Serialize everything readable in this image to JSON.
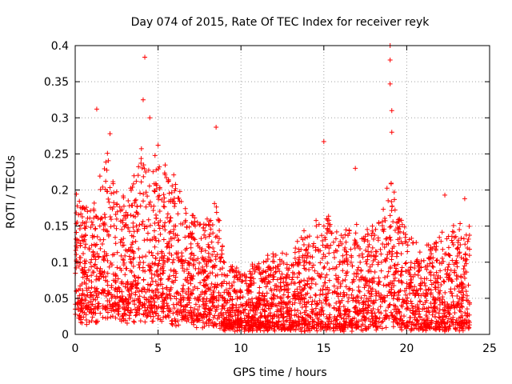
{
  "chart_data": {
    "type": "scatter",
    "title": "Day 074 of 2015, Rate Of TEC Index for receiver reyk",
    "xlabel": "GPS time / hours",
    "ylabel": "ROTI / TECUs",
    "xlim": [
      0,
      25
    ],
    "ylim": [
      0,
      0.4
    ],
    "x_ticks": [
      "0",
      "5",
      "10",
      "15",
      "20",
      "25"
    ],
    "y_ticks": [
      "0",
      "0.05",
      "0.1",
      "0.15",
      "0.2",
      "0.25",
      "0.3",
      "0.35",
      "0.4"
    ],
    "grid": true,
    "marker": "+",
    "color": "#ff0000",
    "x_range_of_data": [
      0,
      23.8
    ],
    "notable_points": [
      {
        "x": 1.3,
        "y": 0.312
      },
      {
        "x": 2.1,
        "y": 0.278
      },
      {
        "x": 4.2,
        "y": 0.384
      },
      {
        "x": 4.1,
        "y": 0.325
      },
      {
        "x": 4.5,
        "y": 0.3
      },
      {
        "x": 5.0,
        "y": 0.262
      },
      {
        "x": 8.5,
        "y": 0.287
      },
      {
        "x": 15.0,
        "y": 0.267
      },
      {
        "x": 16.9,
        "y": 0.23
      },
      {
        "x": 19.0,
        "y": 0.4
      },
      {
        "x": 19.0,
        "y": 0.38
      },
      {
        "x": 19.0,
        "y": 0.347
      },
      {
        "x": 19.1,
        "y": 0.31
      },
      {
        "x": 19.1,
        "y": 0.28
      },
      {
        "x": 22.3,
        "y": 0.193
      },
      {
        "x": 23.5,
        "y": 0.188
      }
    ],
    "envelope": [
      {
        "x": 0.0,
        "base": 0.03,
        "top": 0.2
      },
      {
        "x": 1.0,
        "base": 0.03,
        "top": 0.18
      },
      {
        "x": 2.0,
        "base": 0.03,
        "top": 0.25
      },
      {
        "x": 3.0,
        "base": 0.03,
        "top": 0.18
      },
      {
        "x": 4.0,
        "base": 0.03,
        "top": 0.26
      },
      {
        "x": 5.0,
        "base": 0.03,
        "top": 0.24
      },
      {
        "x": 6.0,
        "base": 0.025,
        "top": 0.22
      },
      {
        "x": 7.0,
        "base": 0.02,
        "top": 0.17
      },
      {
        "x": 8.0,
        "base": 0.02,
        "top": 0.16
      },
      {
        "x": 8.5,
        "base": 0.02,
        "top": 0.2
      },
      {
        "x": 9.0,
        "base": 0.01,
        "top": 0.1
      },
      {
        "x": 10.0,
        "base": 0.01,
        "top": 0.09
      },
      {
        "x": 11.0,
        "base": 0.01,
        "top": 0.1
      },
      {
        "x": 12.0,
        "base": 0.01,
        "top": 0.12
      },
      {
        "x": 13.0,
        "base": 0.01,
        "top": 0.11
      },
      {
        "x": 14.0,
        "base": 0.01,
        "top": 0.16
      },
      {
        "x": 15.0,
        "base": 0.01,
        "top": 0.17
      },
      {
        "x": 16.0,
        "base": 0.01,
        "top": 0.14
      },
      {
        "x": 17.0,
        "base": 0.01,
        "top": 0.16
      },
      {
        "x": 18.0,
        "base": 0.01,
        "top": 0.15
      },
      {
        "x": 19.0,
        "base": 0.02,
        "top": 0.22
      },
      {
        "x": 20.0,
        "base": 0.01,
        "top": 0.14
      },
      {
        "x": 21.0,
        "base": 0.01,
        "top": 0.12
      },
      {
        "x": 22.0,
        "base": 0.01,
        "top": 0.14
      },
      {
        "x": 23.0,
        "base": 0.01,
        "top": 0.15
      },
      {
        "x": 23.8,
        "base": 0.01,
        "top": 0.15
      }
    ]
  }
}
